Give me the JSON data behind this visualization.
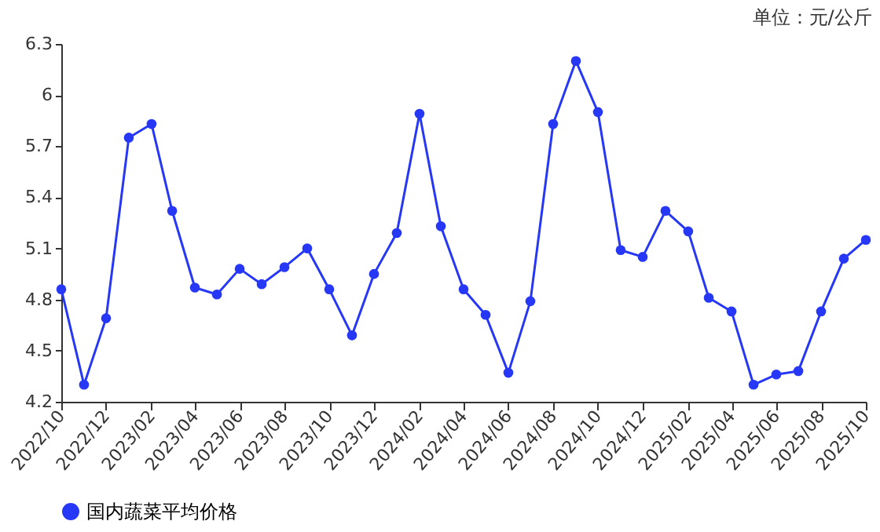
{
  "chart_data": {
    "type": "line",
    "annotations": [
      "单位：元/公斤"
    ],
    "x": [
      "2022-10",
      "2022-11",
      "2022-12",
      "2023-01",
      "2023-02",
      "2023-03",
      "2023-04",
      "2023-05",
      "2023-06",
      "2023-07",
      "2023-08",
      "2023-09",
      "2023-10",
      "2023-11",
      "2023-12",
      "2024-01",
      "2024-02",
      "2024-03",
      "2024-04",
      "2024-05",
      "2024-06",
      "2024-07",
      "2024-08",
      "2024-09",
      "2024-10",
      "2024-11",
      "2024-12",
      "2025-01",
      "2025-02",
      "2025-03",
      "2025-04",
      "2025-05",
      "2025-06",
      "2025-07",
      "2025-08",
      "2025-09",
      "2025-10"
    ],
    "series": [
      {
        "name": "国内蔬菜平均价格",
        "color": "#2638f5",
        "values": [
          4.86,
          4.3,
          4.69,
          5.75,
          5.83,
          5.32,
          4.87,
          4.83,
          4.98,
          4.89,
          4.99,
          5.1,
          4.86,
          4.59,
          4.95,
          5.19,
          5.89,
          5.23,
          4.86,
          4.71,
          4.37,
          4.79,
          5.83,
          6.2,
          5.9,
          5.09,
          5.05,
          5.32,
          5.2,
          4.81,
          4.73,
          4.3,
          4.36,
          4.38,
          4.73,
          5.04,
          5.15
        ]
      }
    ],
    "xlim": [
      "2022-10",
      "2025-10"
    ],
    "xticks": [
      {
        "value": "2022-10",
        "label": "2022/10"
      },
      {
        "value": "2022-12",
        "label": "2022/12"
      },
      {
        "value": "2023-02",
        "label": "2023/02"
      },
      {
        "value": "2023-04",
        "label": "2023/04"
      },
      {
        "value": "2023-06",
        "label": "2023/06"
      },
      {
        "value": "2023-08",
        "label": "2023/08"
      },
      {
        "value": "2023-10",
        "label": "2023/10"
      },
      {
        "value": "2023-12",
        "label": "2023/12"
      },
      {
        "value": "2024-02",
        "label": "2024/02"
      },
      {
        "value": "2024-04",
        "label": "2024/04"
      },
      {
        "value": "2024-06",
        "label": "2024/06"
      },
      {
        "value": "2024-08",
        "label": "2024/08"
      },
      {
        "value": "2024-10",
        "label": "2024/10"
      },
      {
        "value": "2024-12",
        "label": "2024/12"
      },
      {
        "value": "2025-02",
        "label": "2025/02"
      },
      {
        "value": "2025-04",
        "label": "2025/04"
      },
      {
        "value": "2025-06",
        "label": "2025/06"
      },
      {
        "value": "2025-08",
        "label": "2025/08"
      },
      {
        "value": "2025-10",
        "label": "2025/10"
      }
    ],
    "ylim": [
      4.2,
      6.3
    ],
    "yticks": [
      4.2,
      4.5,
      4.8,
      5.1,
      5.4,
      5.7,
      6,
      6.3
    ],
    "grid": false,
    "legend": "bottom",
    "marker": "circle",
    "line_style": "solid"
  }
}
